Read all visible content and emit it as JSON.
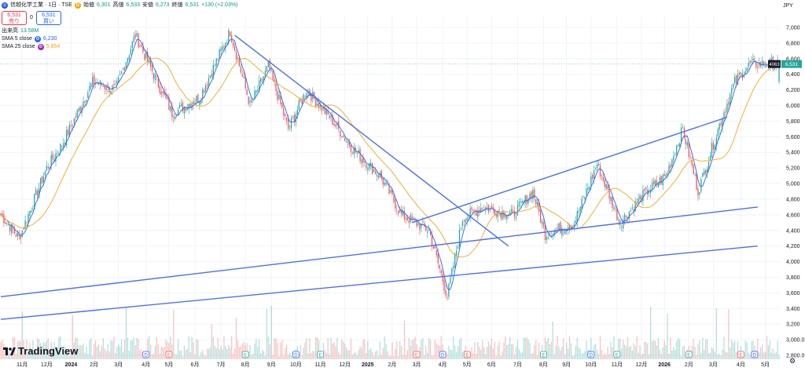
{
  "header": {
    "symbol": "信越化学工業 · 1日 · TSE",
    "open_label": "始値",
    "open": "6,301",
    "high_label": "高値",
    "high": "6,533",
    "low_label": "安値",
    "low": "6,273",
    "close_label": "終値",
    "close": "6,531",
    "change": "+130 (+2.03%)",
    "sell_price": "6,531",
    "sell_label": "売り",
    "spread": "0",
    "buy_price": "6,531",
    "buy_label": "買い",
    "volume_label": "出来高",
    "volume": "13.58M",
    "sma5_label": "SMA 5 close",
    "sma5_value": "6,230",
    "sma25_label": "SMA 25 close",
    "sma25_value": "5,854"
  },
  "currency": "JPY",
  "price_tag": {
    "time": "4063",
    "price": "6,531"
  },
  "branding": "TradingView",
  "colors": {
    "up": "#26a69a",
    "down": "#ef5350",
    "sma5": "#2962ff",
    "sma25": "#f5a623",
    "trendline": "#4e6ef0",
    "grid": "#f0f3fa"
  },
  "chart_data": {
    "type": "candlestick",
    "title": "信越化学工業 · 1日 · TSE",
    "y_ticks": [
      2800,
      3000,
      3200,
      3400,
      3600,
      3800,
      4000,
      4200,
      4400,
      4600,
      4800,
      5000,
      5200,
      5400,
      5600,
      5800,
      6000,
      6200,
      6400,
      6600,
      6800,
      7000
    ],
    "y_tick_labels": [
      "2,800.0",
      "3,000.0",
      "3,200",
      "3,400",
      "3,600",
      "3,800",
      "4,000",
      "4,200",
      "4,400",
      "4,600",
      "4,800",
      "5,000",
      "5,200",
      "5,400",
      "5,600",
      "5,800",
      "6,000",
      "6,200",
      "6,400",
      "6,600",
      "6,800",
      "7,000"
    ],
    "ylim": [
      2750,
      7150
    ],
    "x_labels": [
      "11月",
      "12月",
      "2024",
      "2月",
      "3月",
      "4月",
      "5月",
      "6月",
      "7月",
      "8月",
      "9月",
      "10月",
      "11月",
      "12月",
      "2025",
      "2月",
      "3月",
      "4月",
      "5月",
      "6月",
      "7月",
      "8月",
      "9月",
      "10月",
      "11月",
      "12月",
      "2026",
      "2月",
      "3月",
      "4月",
      "5月"
    ],
    "x_label_index": [
      14,
      30,
      46,
      61,
      77,
      95,
      110,
      127,
      144,
      160,
      177,
      193,
      209,
      225,
      240,
      256,
      272,
      289,
      305,
      321,
      338,
      355,
      370,
      386,
      403,
      419,
      434,
      450,
      466,
      484,
      500
    ],
    "key_points": [
      [
        0,
        4600
      ],
      [
        12,
        4300
      ],
      [
        30,
        5200
      ],
      [
        40,
        5500
      ],
      [
        60,
        6300
      ],
      [
        75,
        6200
      ],
      [
        88,
        6900
      ],
      [
        100,
        6400
      ],
      [
        112,
        5900
      ],
      [
        130,
        6100
      ],
      [
        150,
        6950
      ],
      [
        163,
        6000
      ],
      [
        175,
        6500
      ],
      [
        188,
        5700
      ],
      [
        200,
        6200
      ],
      [
        215,
        5850
      ],
      [
        232,
        5400
      ],
      [
        248,
        5100
      ],
      [
        262,
        4600
      ],
      [
        280,
        4400
      ],
      [
        292,
        3550
      ],
      [
        302,
        4550
      ],
      [
        315,
        4700
      ],
      [
        335,
        4600
      ],
      [
        348,
        4900
      ],
      [
        356,
        4350
      ],
      [
        375,
        4500
      ],
      [
        390,
        5250
      ],
      [
        405,
        4500
      ],
      [
        420,
        4850
      ],
      [
        435,
        5100
      ],
      [
        446,
        5700
      ],
      [
        456,
        4900
      ],
      [
        470,
        5750
      ],
      [
        480,
        6300
      ],
      [
        490,
        6531
      ]
    ],
    "last_bar": {
      "open": 6301,
      "high": 6533,
      "low": 6273,
      "close": 6531,
      "change": 130,
      "change_pct": 2.03
    },
    "series": [
      {
        "name": "SMA 5 close",
        "value": 6230
      },
      {
        "name": "SMA 25 close",
        "value": 5854
      }
    ],
    "trendlines": [
      {
        "from": [
          153,
          6900
        ],
        "to": [
          332,
          4200
        ]
      },
      {
        "from": [
          269,
          4500
        ],
        "to": [
          475,
          5850
        ]
      },
      {
        "from": [
          0,
          3550
        ],
        "to": [
          495,
          4700
        ]
      },
      {
        "from": [
          0,
          3260
        ],
        "to": [
          495,
          4200
        ]
      }
    ],
    "volume_max": 40000000
  }
}
